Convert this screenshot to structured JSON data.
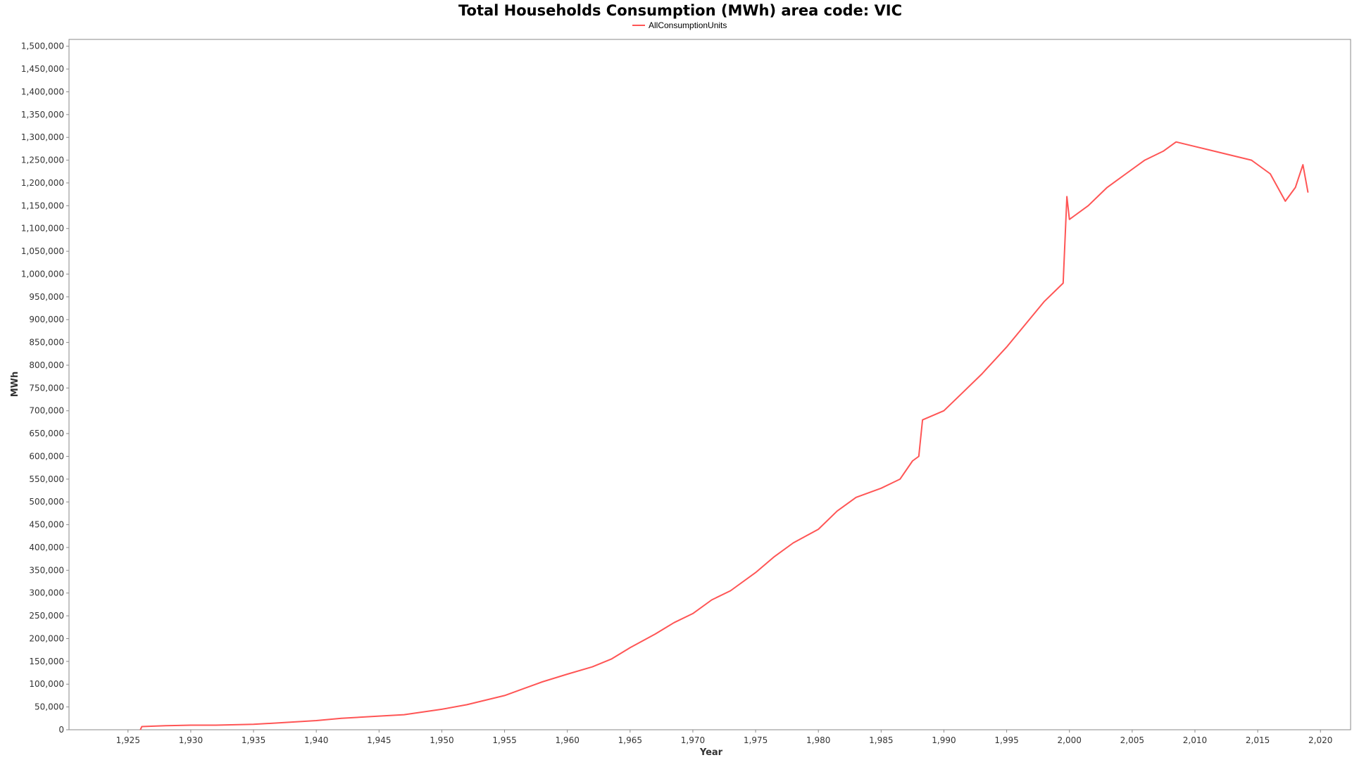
{
  "chart_data": {
    "type": "line",
    "title": "Total Households Consumption (MWh) area code: VIC",
    "xlabel": "Year",
    "ylabel": "MWh",
    "xlim": [
      1920.3,
      2022.4
    ],
    "ylim": [
      0,
      1515000
    ],
    "x_ticks": [
      1925,
      1930,
      1935,
      1940,
      1945,
      1950,
      1955,
      1960,
      1965,
      1970,
      1975,
      1980,
      1985,
      1990,
      1995,
      2000,
      2005,
      2010,
      2015,
      2020
    ],
    "x_tick_labels": [
      "1,925",
      "1,930",
      "1,935",
      "1,940",
      "1,945",
      "1,950",
      "1,955",
      "1,960",
      "1,965",
      "1,970",
      "1,975",
      "1,980",
      "1,985",
      "1,990",
      "1,995",
      "2,000",
      "2,005",
      "2,010",
      "2,015",
      "2,020"
    ],
    "y_ticks": [
      0,
      50000,
      100000,
      150000,
      200000,
      250000,
      300000,
      350000,
      400000,
      450000,
      500000,
      550000,
      600000,
      650000,
      700000,
      750000,
      800000,
      850000,
      900000,
      950000,
      1000000,
      1050000,
      1100000,
      1150000,
      1200000,
      1250000,
      1300000,
      1350000,
      1400000,
      1450000,
      1500000
    ],
    "y_tick_labels": [
      "0",
      "50,000",
      "100,000",
      "150,000",
      "200,000",
      "250,000",
      "300,000",
      "350,000",
      "400,000",
      "450,000",
      "500,000",
      "550,000",
      "600,000",
      "650,000",
      "700,000",
      "750,000",
      "800,000",
      "850,000",
      "900,000",
      "950,000",
      "1,000,000",
      "1,050,000",
      "1,100,000",
      "1,150,000",
      "1,200,000",
      "1,250,000",
      "1,300,000",
      "1,350,000",
      "1,400,000",
      "1,450,000",
      "1,500,000"
    ],
    "grid": false,
    "legend_position": "top-center",
    "series": [
      {
        "name": "AllConsumptionUnits",
        "color": "#ff5555",
        "points": [
          [
            1926.0,
            1000
          ],
          [
            1926.1,
            7000
          ],
          [
            1928.0,
            9000
          ],
          [
            1930.0,
            10000
          ],
          [
            1932.0,
            10000
          ],
          [
            1935.0,
            12000
          ],
          [
            1937.0,
            15000
          ],
          [
            1940.0,
            20000
          ],
          [
            1942.0,
            25000
          ],
          [
            1945.0,
            30000
          ],
          [
            1947.0,
            33000
          ],
          [
            1950.0,
            45000
          ],
          [
            1952.0,
            55000
          ],
          [
            1955.0,
            75000
          ],
          [
            1956.5,
            90000
          ],
          [
            1958.0,
            105000
          ],
          [
            1960.0,
            122000
          ],
          [
            1962.0,
            138000
          ],
          [
            1963.5,
            155000
          ],
          [
            1965.0,
            180000
          ],
          [
            1967.0,
            210000
          ],
          [
            1968.5,
            235000
          ],
          [
            1970.0,
            255000
          ],
          [
            1971.5,
            285000
          ],
          [
            1973.0,
            305000
          ],
          [
            1975.0,
            345000
          ],
          [
            1976.5,
            380000
          ],
          [
            1978.0,
            410000
          ],
          [
            1980.0,
            440000
          ],
          [
            1981.5,
            480000
          ],
          [
            1983.0,
            510000
          ],
          [
            1985.0,
            530000
          ],
          [
            1986.5,
            550000
          ],
          [
            1987.5,
            590000
          ],
          [
            1988.0,
            600000
          ],
          [
            1988.3,
            680000
          ],
          [
            1990.0,
            700000
          ],
          [
            1991.5,
            740000
          ],
          [
            1993.0,
            780000
          ],
          [
            1995.0,
            840000
          ],
          [
            1996.5,
            890000
          ],
          [
            1998.0,
            940000
          ],
          [
            1999.5,
            980000
          ],
          [
            1999.8,
            1170000
          ],
          [
            2000.0,
            1120000
          ],
          [
            2001.5,
            1150000
          ],
          [
            2003.0,
            1190000
          ],
          [
            2004.5,
            1220000
          ],
          [
            2006.0,
            1250000
          ],
          [
            2007.5,
            1270000
          ],
          [
            2008.5,
            1290000
          ],
          [
            2010.0,
            1280000
          ],
          [
            2011.5,
            1270000
          ],
          [
            2013.0,
            1260000
          ],
          [
            2014.5,
            1250000
          ],
          [
            2016.0,
            1220000
          ],
          [
            2017.2,
            1160000
          ],
          [
            2018.0,
            1190000
          ],
          [
            2018.6,
            1240000
          ],
          [
            2019.0,
            1180000
          ]
        ]
      }
    ]
  }
}
